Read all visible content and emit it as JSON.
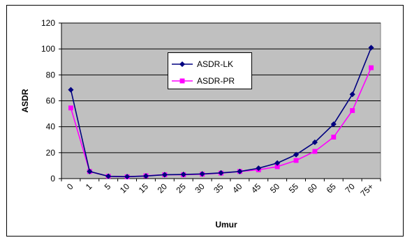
{
  "chart_data": {
    "type": "line",
    "xlabel": "Umur",
    "ylabel": "ASDR",
    "categories": [
      "0",
      "1",
      "5",
      "10",
      "15",
      "20",
      "25",
      "30",
      "35",
      "40",
      "45",
      "50",
      "55",
      "60",
      "65",
      "70",
      "75+"
    ],
    "ylim": [
      0,
      120
    ],
    "yticks": [
      0,
      20,
      40,
      60,
      80,
      100,
      120
    ],
    "grid": true,
    "legend_position": "center",
    "series": [
      {
        "name": "ASDR-LK",
        "color": "#000080",
        "marker": "diamond",
        "values": [
          68.5,
          5.5,
          1.8,
          1.5,
          2.0,
          3.0,
          3.2,
          3.6,
          4.4,
          5.5,
          8.0,
          12.0,
          18.5,
          28.0,
          42.0,
          65.0,
          101.0
        ]
      },
      {
        "name": "ASDR-PR",
        "color": "#ff00ff",
        "marker": "square",
        "values": [
          54.5,
          5.5,
          1.8,
          1.4,
          2.2,
          3.0,
          3.0,
          3.4,
          4.2,
          5.5,
          6.8,
          9.2,
          14.0,
          21.0,
          32.0,
          52.5,
          85.5
        ]
      }
    ]
  }
}
